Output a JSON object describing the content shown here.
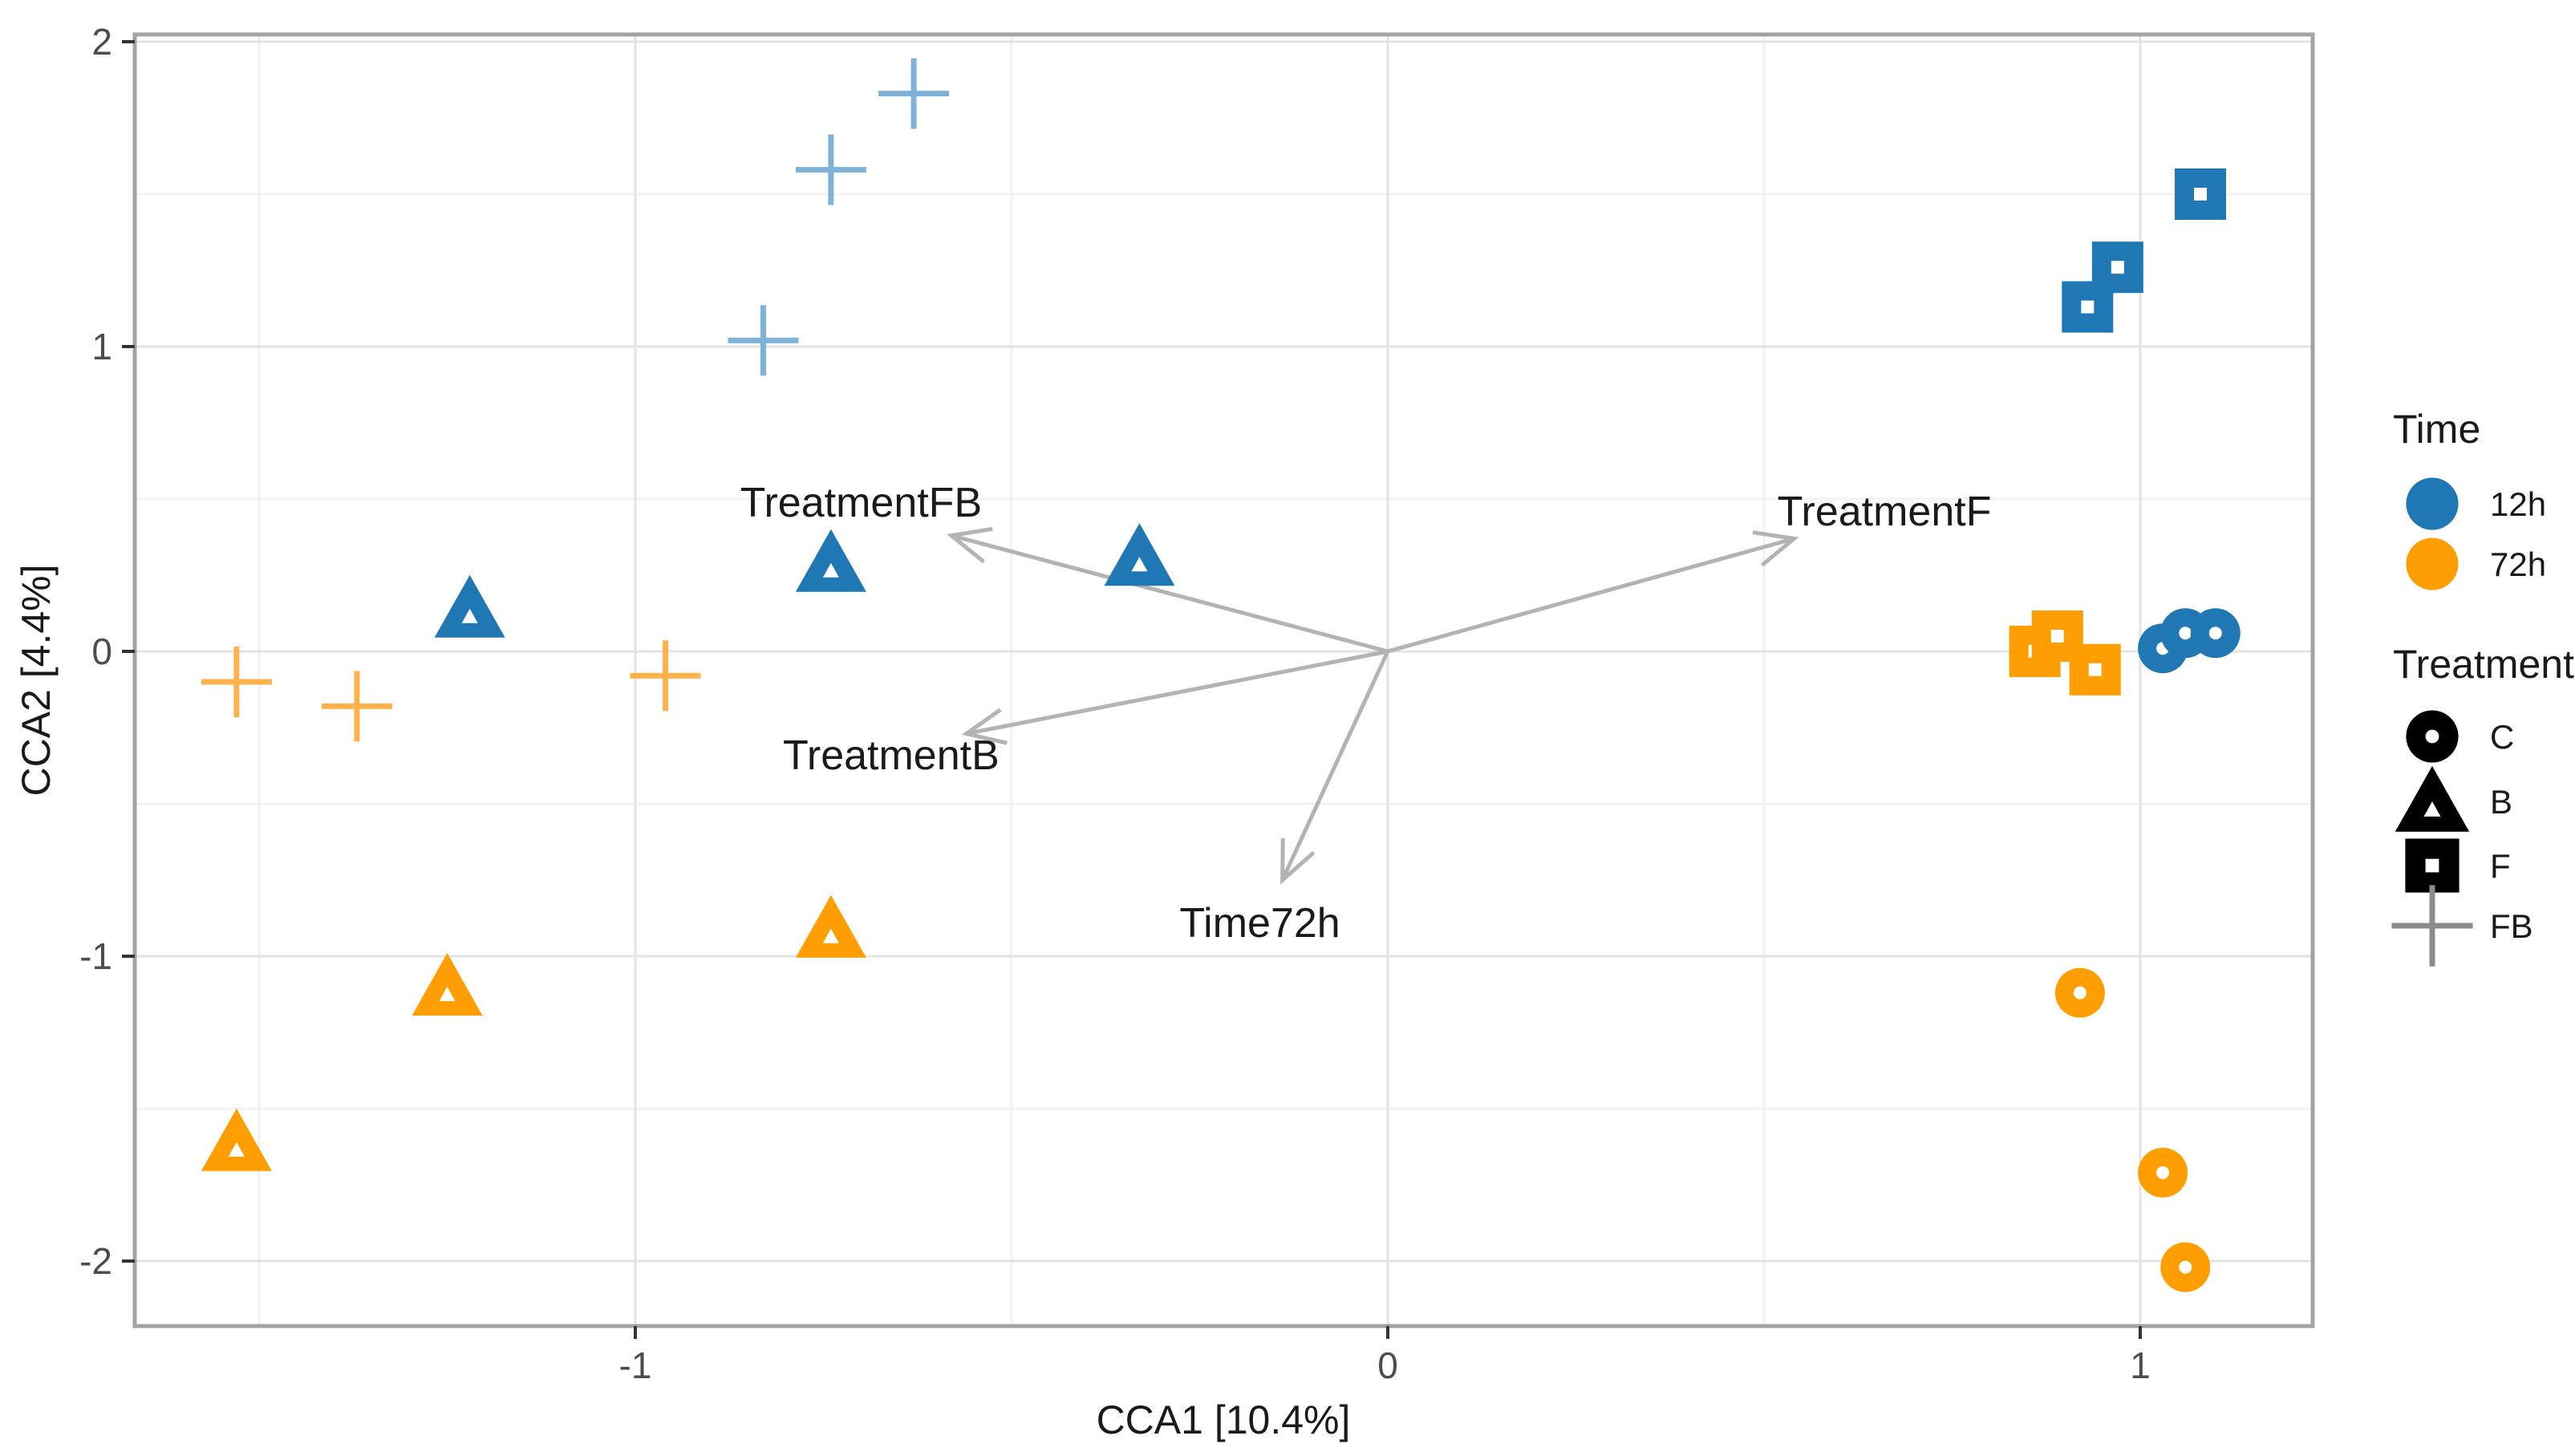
{
  "chart_data": {
    "type": "scatter",
    "title": "",
    "xlabel": "CCA1 [10.4%]",
    "ylabel": "CCA2 [4.4%]",
    "xlim": [
      -1.66,
      1.23
    ],
    "ylim": [
      -2.21,
      2.02
    ],
    "x_ticks": [
      "-1",
      "0",
      "1"
    ],
    "x_tick_values": [
      -1,
      0,
      1
    ],
    "y_ticks": [
      "2",
      "1",
      "0",
      "-1",
      "-2"
    ],
    "y_tick_values": [
      2,
      1,
      0,
      -1,
      -2
    ],
    "x_minor": [
      -1.5,
      -0.5,
      0.5
    ],
    "y_minor": [
      1.5,
      0.5,
      -0.5,
      -1.5
    ],
    "grid": true,
    "legend_position": "right",
    "colors": {
      "blue_12h": "#1F78B4",
      "orange_72h": "#FF9E00",
      "blue_cross": "#7FB2D9",
      "orange_cross": "#FFB24A",
      "arrow_gray": "#B3B3B3",
      "legend_black": "#000000",
      "legend_cross_gray": "#8C8C8C"
    },
    "series": [
      {
        "name": "12h FB",
        "time": "12h",
        "treatment": "FB",
        "shape": "plus",
        "color": "#7FB2D9",
        "points": [
          [
            -0.63,
            1.83
          ],
          [
            -0.74,
            1.58
          ],
          [
            -0.83,
            1.02
          ]
        ]
      },
      {
        "name": "12h B",
        "time": "12h",
        "treatment": "B",
        "shape": "triangle",
        "color": "#1F78B4",
        "points": [
          [
            -1.22,
            0.14
          ],
          [
            -0.74,
            0.29
          ],
          [
            -0.33,
            0.31
          ]
        ]
      },
      {
        "name": "12h F",
        "time": "12h",
        "treatment": "F",
        "shape": "square",
        "color": "#1F78B4",
        "points": [
          [
            1.08,
            1.5
          ],
          [
            0.97,
            1.26
          ],
          [
            0.93,
            1.13
          ]
        ]
      },
      {
        "name": "12h C",
        "time": "12h",
        "treatment": "C",
        "shape": "circle",
        "color": "#1F78B4",
        "points": [
          [
            1.03,
            0.01
          ],
          [
            1.06,
            0.06
          ],
          [
            1.1,
            0.06
          ]
        ]
      },
      {
        "name": "72h FB",
        "time": "72h",
        "treatment": "FB",
        "shape": "plus",
        "color": "#FFB24A",
        "points": [
          [
            -1.53,
            -0.1
          ],
          [
            -1.37,
            -0.18
          ],
          [
            -0.96,
            -0.08
          ]
        ]
      },
      {
        "name": "72h B",
        "time": "72h",
        "treatment": "B",
        "shape": "triangle",
        "color": "#FF9E00",
        "points": [
          [
            -0.74,
            -0.91
          ],
          [
            -1.25,
            -1.1
          ],
          [
            -1.53,
            -1.61
          ]
        ]
      },
      {
        "name": "72h F",
        "time": "72h",
        "treatment": "F",
        "shape": "square",
        "color": "#FF9E00",
        "points": [
          [
            0.86,
            0.0
          ],
          [
            0.89,
            0.05
          ],
          [
            0.94,
            -0.06
          ]
        ]
      },
      {
        "name": "72h C",
        "time": "72h",
        "treatment": "C",
        "shape": "circle",
        "color": "#FF9E00",
        "points": [
          [
            0.92,
            -1.12
          ],
          [
            1.03,
            -1.71
          ],
          [
            1.06,
            -2.02
          ]
        ]
      }
    ],
    "arrows": [
      {
        "label": "TreatmentFB",
        "x": -0.58,
        "y": 0.38,
        "label_x": -0.7,
        "label_y": 0.49
      },
      {
        "label": "TreatmentF",
        "x": 0.54,
        "y": 0.37,
        "label_x": 0.66,
        "label_y": 0.46
      },
      {
        "label": "TreatmentB",
        "x": -0.56,
        "y": -0.27,
        "label_x": -0.66,
        "label_y": -0.34
      },
      {
        "label": "Time72h",
        "x": -0.14,
        "y": -0.75,
        "label_x": -0.17,
        "label_y": -0.89
      }
    ]
  },
  "legend": {
    "time": {
      "title": "Time",
      "items": [
        {
          "label": "12h",
          "shape": "circle",
          "color": "#1F78B4"
        },
        {
          "label": "72h",
          "shape": "circle",
          "color": "#FF9E00"
        }
      ]
    },
    "treatment": {
      "title": "Treatment",
      "items": [
        {
          "label": "C",
          "shape": "circle",
          "color": "#000000"
        },
        {
          "label": "B",
          "shape": "triangle",
          "color": "#000000"
        },
        {
          "label": "F",
          "shape": "square",
          "color": "#000000"
        },
        {
          "label": "FB",
          "shape": "plus",
          "color": "#8C8C8C"
        }
      ]
    }
  }
}
